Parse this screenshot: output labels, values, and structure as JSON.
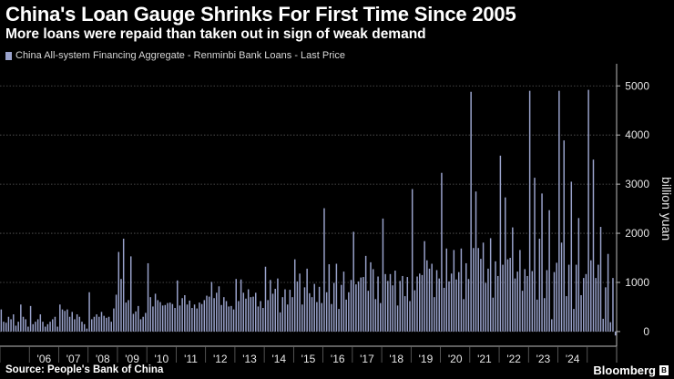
{
  "header": {
    "title": "China's Loan Gauge Shrinks For First Time Since 2005",
    "subtitle": "More loans were repaid than taken out in sign of weak demand"
  },
  "legend": {
    "label": "China All-system Financing Aggregate - Renminbi Bank Loans - Last Price",
    "color": "#9aa3cc"
  },
  "footer": {
    "source": "Source: People's Bank of China",
    "brand": "Bloomberg"
  },
  "chart_data": {
    "type": "bar",
    "title": "China's Loan Gauge Shrinks For First Time Since 2005",
    "subtitle": "More loans were repaid than taken out in sign of weak demand",
    "ylabel": "billion yuan",
    "ylim": [
      -150,
      5450
    ],
    "yticks": [
      0,
      1000,
      2000,
      3000,
      4000,
      5000
    ],
    "grid": true,
    "legend_position": "top-left",
    "x_tick_labels": [
      "'06",
      "'07",
      "'08",
      "'09",
      "'10",
      "'11",
      "'12",
      "'13",
      "'14",
      "'15",
      "'16",
      "'17",
      "'18",
      "'19",
      "'20",
      "'21",
      "'22",
      "'23",
      "'24"
    ],
    "start_month": "2005-01",
    "series": [
      {
        "name": "China All-system Financing Aggregate - Renminbi Bank Loans - Last Price",
        "color": "#9aa3cc",
        "values": [
          450,
          200,
          180,
          300,
          250,
          350,
          120,
          200,
          550,
          300,
          250,
          100,
          520,
          150,
          200,
          250,
          350,
          200,
          100,
          150,
          200,
          250,
          300,
          100,
          550,
          450,
          420,
          450,
          300,
          400,
          250,
          350,
          300,
          200,
          150,
          60,
          800,
          250,
          300,
          350,
          300,
          400,
          320,
          280,
          300,
          200,
          470,
          750,
          1620,
          1070,
          1890,
          590,
          640,
          1530,
          360,
          410,
          520,
          250,
          300,
          380,
          1390,
          700,
          510,
          770,
          640,
          600,
          530,
          540,
          580,
          590,
          560,
          480,
          1040,
          530,
          680,
          740,
          550,
          630,
          480,
          550,
          470,
          590,
          560,
          640,
          730,
          710,
          1010,
          680,
          790,
          920,
          540,
          700,
          620,
          510,
          520,
          450,
          1070,
          620,
          1060,
          790,
          670,
          860,
          700,
          710,
          790,
          510,
          620,
          480,
          1320,
          640,
          1050,
          770,
          870,
          1080,
          390,
          700,
          860,
          550,
          850,
          700,
          1470,
          1020,
          1180,
          550,
          900,
          1280,
          780,
          700,
          970,
          600,
          910,
          580,
          2510,
          800,
          1370,
          560,
          990,
          1380,
          460,
          950,
          1220,
          650,
          800,
          1050,
          2030,
          960,
          1020,
          1100,
          1110,
          1540,
          830,
          1410,
          1270,
          660,
          1120,
          580,
          2300,
          1170,
          1030,
          1170,
          940,
          1240,
          530,
          1030,
          1130,
          720,
          1110,
          620,
          2900,
          840,
          1120,
          1180,
          1150,
          1840,
          1450,
          1280,
          1380,
          700,
          1250,
          1080,
          3230,
          890,
          1690,
          1020,
          1180,
          1660,
          1060,
          1210,
          1690,
          660,
          1390,
          1070,
          4880,
          1700,
          2850,
          1700,
          1480,
          1810,
          990,
          1280,
          1900,
          690,
          1430,
          1130,
          3580,
          1360,
          2730,
          1470,
          1500,
          2120,
          1080,
          1220,
          1660,
          830,
          1270,
          1130,
          4900,
          1230,
          3130,
          650,
          1890,
          2810,
          680,
          1250,
          2470,
          250,
          1210,
          1400,
          4900,
          1810,
          3890,
          720,
          1360,
          3050,
          460,
          1360,
          2310,
          740,
          1090,
          1170,
          4920,
          1450,
          3500,
          1090,
          1360,
          2130,
          260,
          900,
          1580,
          190,
          1090,
          -80
        ]
      }
    ]
  }
}
